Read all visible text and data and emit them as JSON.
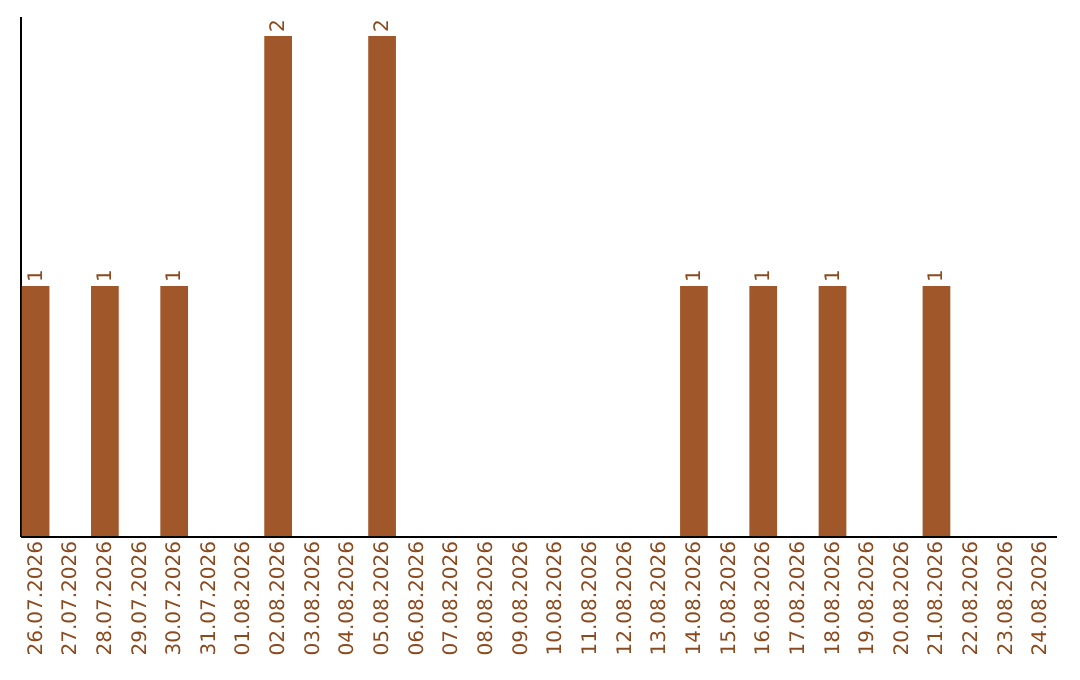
{
  "chart_data": {
    "type": "bar",
    "categories": [
      "26.07.2026",
      "27.07.2026",
      "28.07.2026",
      "29.07.2026",
      "30.07.2026",
      "31.07.2026",
      "01.08.2026",
      "02.08.2026",
      "03.08.2026",
      "04.08.2026",
      "05.08.2026",
      "06.08.2026",
      "07.08.2026",
      "08.08.2026",
      "09.08.2026",
      "10.08.2026",
      "11.08.2026",
      "12.08.2026",
      "13.08.2026",
      "14.08.2026",
      "15.08.2026",
      "16.08.2026",
      "17.08.2026",
      "18.08.2026",
      "19.08.2026",
      "20.08.2026",
      "21.08.2026",
      "22.08.2026",
      "23.08.2026",
      "24.08.2026"
    ],
    "values": [
      1,
      0,
      1,
      0,
      1,
      0,
      0,
      2,
      0,
      0,
      2,
      0,
      0,
      0,
      0,
      0,
      0,
      0,
      0,
      1,
      0,
      1,
      0,
      1,
      0,
      0,
      1,
      0,
      0,
      0
    ],
    "value_labels": [
      "1",
      null,
      "1",
      null,
      "1",
      null,
      null,
      "2",
      null,
      null,
      "2",
      null,
      null,
      null,
      null,
      null,
      null,
      null,
      null,
      "1",
      null,
      "1",
      null,
      "1",
      null,
      null,
      "1",
      null,
      null,
      null
    ],
    "color": "#a0582a",
    "ylim": [
      0,
      2.08
    ],
    "tick_labels": "x",
    "grid": false
  }
}
